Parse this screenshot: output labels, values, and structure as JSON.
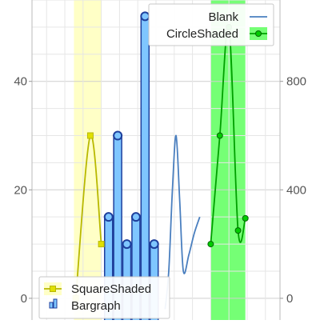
{
  "chart_data": {
    "type": "line",
    "title": "",
    "xlabel": "",
    "ylabel": "",
    "left_axis": {
      "range": [
        -4,
        55
      ],
      "ticks": [
        0,
        20,
        40
      ]
    },
    "right_axis": {
      "range": [
        -80,
        1100
      ],
      "ticks": [
        0,
        400,
        800
      ]
    },
    "x_range": [
      -0.8,
      12.8
    ],
    "grid": true,
    "series": [
      {
        "name": "SquareShaded",
        "type": "line",
        "axis": "left",
        "color": "#b8b800",
        "marker": "square",
        "marker_color": "#e0e000",
        "shade_color": "#ffffc0",
        "shade_band": [
          1.5,
          3.0
        ],
        "x": [
          1.6,
          2.4,
          3.0
        ],
        "y": [
          0,
          30,
          10
        ]
      },
      {
        "name": "Bargraph",
        "type": "bar",
        "axis": "left",
        "color": "#1e3f9c",
        "fill": "#7fc6ff",
        "x": [
          3.4,
          3.9,
          4.4,
          4.9,
          5.4,
          5.9
        ],
        "y": [
          15,
          30,
          10,
          15,
          52,
          10
        ]
      },
      {
        "name": "Blank",
        "type": "line",
        "axis": "left",
        "color": "#4a7fbf",
        "marker": "none",
        "x": [
          6.5,
          6.7,
          6.9,
          7.1,
          7.3,
          7.5,
          7.8,
          8.1,
          8.4
        ],
        "y": [
          -2,
          5,
          20,
          30,
          18,
          5,
          8,
          12,
          15
        ]
      },
      {
        "name": "CircleShaded",
        "type": "line",
        "axis": "right",
        "color": "#00a000",
        "marker": "circle",
        "marker_color": "#00cc00",
        "shade_color": "#66ff66",
        "shade_band": [
          9.0,
          10.9
        ],
        "x": [
          9.0,
          9.5,
          10.0,
          10.5,
          10.9
        ],
        "y": [
          200,
          600,
          1000,
          250,
          295
        ]
      }
    ],
    "legend": [
      {
        "position": "top-right",
        "entries": [
          "Blank",
          "CircleShaded"
        ]
      },
      {
        "position": "bottom-left",
        "entries": [
          "SquareShaded",
          "Bargraph"
        ]
      }
    ]
  }
}
